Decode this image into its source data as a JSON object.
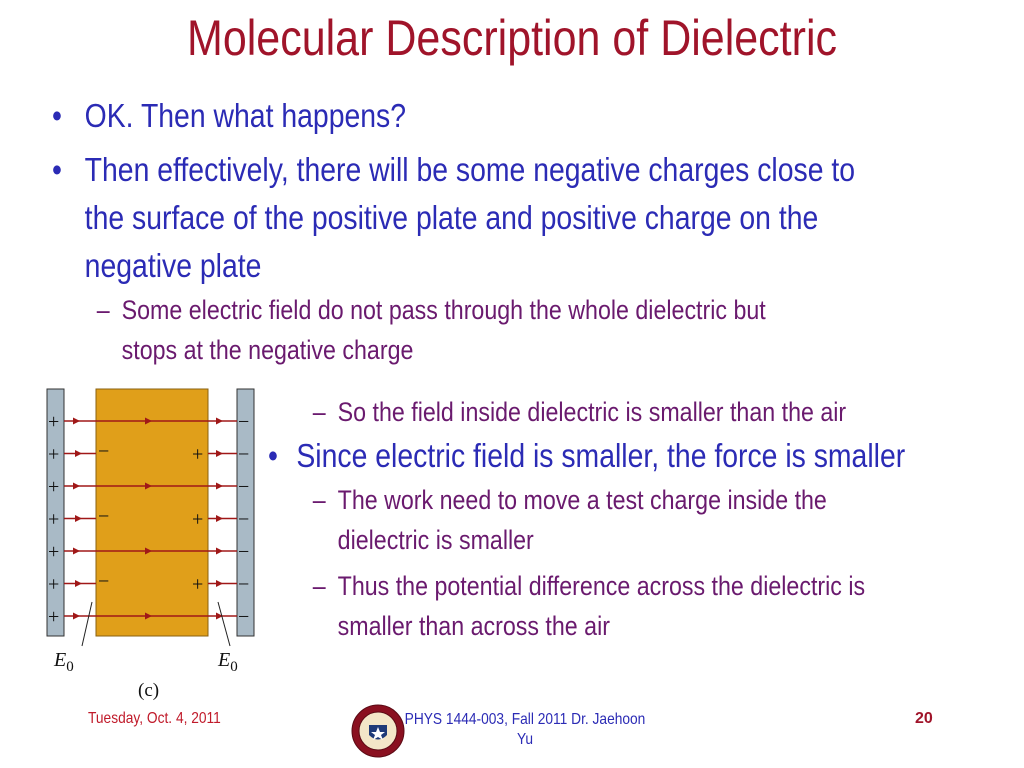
{
  "title": "Molecular Description of Dielectric",
  "bullets_top": [
    {
      "level": 1,
      "marker": "•",
      "lines": [
        "OK. Then what happens?"
      ]
    },
    {
      "level": 1,
      "marker": "•",
      "lines": [
        "Then effectively, there will be some negative charges close to",
        "the surface of the positive plate and positive charge on the",
        "negative plate"
      ]
    },
    {
      "level": 2,
      "marker": "–",
      "lines": [
        "Some electric field do not pass through the whole dielectric but",
        "stops at the negative charge"
      ]
    }
  ],
  "bullets_right": [
    {
      "level": 2,
      "marker": "–",
      "lines": [
        "So the field inside dielectric is smaller than the air"
      ]
    },
    {
      "level": 1,
      "marker": "•",
      "lines": [
        "Since electric field is smaller, the force is smaller"
      ]
    },
    {
      "level": 2,
      "marker": "–",
      "lines": [
        "The work need to move a test charge inside the",
        "dielectric is smaller"
      ]
    },
    {
      "level": 2,
      "marker": "–",
      "lines": [
        "Thus the potential difference across the dielectric is",
        "smaller than across the air"
      ]
    }
  ],
  "figure": {
    "left_plate_sign": "+",
    "right_plate_sign": "−",
    "dielectric_left_sign": "−",
    "dielectric_right_sign": "+",
    "field_label": "E",
    "field_subscript": "0",
    "caption": "(c)",
    "colors": {
      "plate": "#a9bac6",
      "dielectric": "#e09f1a",
      "field_line": "#a01818",
      "sign": "#111111"
    }
  },
  "footer": {
    "date": "Tuesday, Oct. 4, 2011",
    "course_line1": "PHYS 1444-003, Fall 2011 Dr. Jaehoon",
    "course_line2": "Yu",
    "page": "20"
  },
  "logo": "university-seal"
}
